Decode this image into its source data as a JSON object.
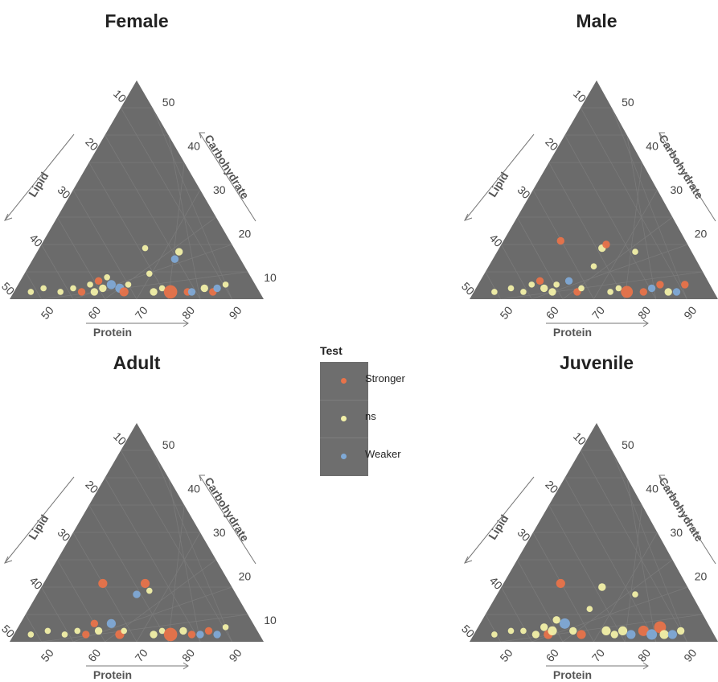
{
  "legend": {
    "title": "Test",
    "items": [
      {
        "label": "Stronger",
        "color": "#e8734a"
      },
      {
        "label": "ns",
        "color": "#f2f0a8"
      },
      {
        "label": "Weaker",
        "color": "#7fa9d6"
      }
    ]
  },
  "axes": {
    "lipid": "Lipid",
    "carbohydrate": "Carbohydrate",
    "protein": "Protein",
    "lipid_ticks": [
      "10",
      "20",
      "30",
      "40",
      "50"
    ],
    "carb_ticks": [
      "10",
      "20",
      "30",
      "40",
      "50"
    ],
    "protein_ticks": [
      "50",
      "60",
      "70",
      "80",
      "90"
    ]
  },
  "chart_data": [
    {
      "type": "scatter",
      "title": "Female",
      "points": [
        {
          "protein": 45,
          "carbohydrate": 2,
          "test": "ns",
          "size": 2
        },
        {
          "protein": 48,
          "carbohydrate": 3,
          "test": "ns",
          "size": 2
        },
        {
          "protein": 52,
          "carbohydrate": 2,
          "test": "ns",
          "size": 2
        },
        {
          "protein": 55,
          "carbohydrate": 3,
          "test": "ns",
          "size": 2
        },
        {
          "protein": 57,
          "carbohydrate": 2,
          "test": "Stronger",
          "size": 3
        },
        {
          "protein": 59,
          "carbohydrate": 4,
          "test": "ns",
          "size": 2
        },
        {
          "protein": 60,
          "carbohydrate": 2,
          "test": "ns",
          "size": 3
        },
        {
          "protein": 61,
          "carbohydrate": 5,
          "test": "Stronger",
          "size": 3
        },
        {
          "protein": 62,
          "carbohydrate": 3,
          "test": "ns",
          "size": 3
        },
        {
          "protein": 63,
          "carbohydrate": 6,
          "test": "ns",
          "size": 2
        },
        {
          "protein": 64,
          "carbohydrate": 4,
          "test": "Weaker",
          "size": 4
        },
        {
          "protein": 66,
          "carbohydrate": 3,
          "test": "Weaker",
          "size": 4
        },
        {
          "protein": 67,
          "carbohydrate": 2,
          "test": "Stronger",
          "size": 4
        },
        {
          "protein": 68,
          "carbohydrate": 4,
          "test": "ns",
          "size": 2
        },
        {
          "protein": 72,
          "carbohydrate": 14,
          "test": "ns",
          "size": 2
        },
        {
          "protein": 73,
          "carbohydrate": 7,
          "test": "ns",
          "size": 2
        },
        {
          "protein": 74,
          "carbohydrate": 2,
          "test": "ns",
          "size": 3
        },
        {
          "protein": 76,
          "carbohydrate": 3,
          "test": "ns",
          "size": 2
        },
        {
          "protein": 78,
          "carbohydrate": 2,
          "test": "Stronger",
          "size": 7
        },
        {
          "protein": 79,
          "carbohydrate": 11,
          "test": "Weaker",
          "size": 3
        },
        {
          "protein": 80,
          "carbohydrate": 13,
          "test": "ns",
          "size": 3
        },
        {
          "protein": 82,
          "carbohydrate": 2,
          "test": "Stronger",
          "size": 3
        },
        {
          "protein": 83,
          "carbohydrate": 2,
          "test": "Weaker",
          "size": 3
        },
        {
          "protein": 86,
          "carbohydrate": 3,
          "test": "ns",
          "size": 3
        },
        {
          "protein": 88,
          "carbohydrate": 2,
          "test": "Stronger",
          "size": 3
        },
        {
          "protein": 89,
          "carbohydrate": 3,
          "test": "Weaker",
          "size": 3
        },
        {
          "protein": 91,
          "carbohydrate": 4,
          "test": "ns",
          "size": 2
        }
      ]
    },
    {
      "type": "scatter",
      "title": "Male",
      "points": [
        {
          "protein": 46,
          "carbohydrate": 2,
          "test": "ns",
          "size": 2
        },
        {
          "protein": 50,
          "carbohydrate": 3,
          "test": "ns",
          "size": 2
        },
        {
          "protein": 53,
          "carbohydrate": 2,
          "test": "ns",
          "size": 2
        },
        {
          "protein": 55,
          "carbohydrate": 4,
          "test": "ns",
          "size": 2
        },
        {
          "protein": 57,
          "carbohydrate": 5,
          "test": "Stronger",
          "size": 3
        },
        {
          "protein": 58,
          "carbohydrate": 3,
          "test": "ns",
          "size": 3
        },
        {
          "protein": 60,
          "carbohydrate": 2,
          "test": "ns",
          "size": 3
        },
        {
          "protein": 61,
          "carbohydrate": 4,
          "test": "ns",
          "size": 2
        },
        {
          "protein": 62,
          "carbohydrate": 16,
          "test": "Stronger",
          "size": 3
        },
        {
          "protein": 64,
          "carbohydrate": 5,
          "test": "Weaker",
          "size": 3
        },
        {
          "protein": 66,
          "carbohydrate": 2,
          "test": "Stronger",
          "size": 3
        },
        {
          "protein": 67,
          "carbohydrate": 3,
          "test": "ns",
          "size": 2
        },
        {
          "protein": 70,
          "carbohydrate": 9,
          "test": "ns",
          "size": 2
        },
        {
          "protein": 72,
          "carbohydrate": 14,
          "test": "ns",
          "size": 3
        },
        {
          "protein": 73,
          "carbohydrate": 15,
          "test": "Stronger",
          "size": 3
        },
        {
          "protein": 74,
          "carbohydrate": 2,
          "test": "ns",
          "size": 2
        },
        {
          "protein": 76,
          "carbohydrate": 3,
          "test": "ns",
          "size": 2
        },
        {
          "protein": 78,
          "carbohydrate": 2,
          "test": "Stronger",
          "size": 6
        },
        {
          "protein": 80,
          "carbohydrate": 13,
          "test": "ns",
          "size": 2
        },
        {
          "protein": 82,
          "carbohydrate": 2,
          "test": "Stronger",
          "size": 3
        },
        {
          "protein": 84,
          "carbohydrate": 3,
          "test": "Weaker",
          "size": 3
        },
        {
          "protein": 86,
          "carbohydrate": 4,
          "test": "Stronger",
          "size": 3
        },
        {
          "protein": 88,
          "carbohydrate": 2,
          "test": "ns",
          "size": 3
        },
        {
          "protein": 90,
          "carbohydrate": 2,
          "test": "Weaker",
          "size": 3
        },
        {
          "protein": 92,
          "carbohydrate": 4,
          "test": "Stronger",
          "size": 3
        }
      ]
    },
    {
      "type": "scatter",
      "title": "Adult",
      "points": [
        {
          "protein": 45,
          "carbohydrate": 2,
          "test": "ns",
          "size": 2
        },
        {
          "protein": 49,
          "carbohydrate": 3,
          "test": "ns",
          "size": 2
        },
        {
          "protein": 53,
          "carbohydrate": 2,
          "test": "ns",
          "size": 2
        },
        {
          "protein": 56,
          "carbohydrate": 3,
          "test": "ns",
          "size": 2
        },
        {
          "protein": 58,
          "carbohydrate": 2,
          "test": "Stronger",
          "size": 3
        },
        {
          "protein": 60,
          "carbohydrate": 5,
          "test": "Stronger",
          "size": 3
        },
        {
          "protein": 61,
          "carbohydrate": 3,
          "test": "ns",
          "size": 3
        },
        {
          "protein": 62,
          "carbohydrate": 16,
          "test": "Stronger",
          "size": 4
        },
        {
          "protein": 64,
          "carbohydrate": 5,
          "test": "Weaker",
          "size": 4
        },
        {
          "protein": 66,
          "carbohydrate": 2,
          "test": "Stronger",
          "size": 4
        },
        {
          "protein": 67,
          "carbohydrate": 3,
          "test": "ns",
          "size": 2
        },
        {
          "protein": 70,
          "carbohydrate": 13,
          "test": "Weaker",
          "size": 3
        },
        {
          "protein": 72,
          "carbohydrate": 16,
          "test": "Stronger",
          "size": 4
        },
        {
          "protein": 73,
          "carbohydrate": 14,
          "test": "ns",
          "size": 2
        },
        {
          "protein": 74,
          "carbohydrate": 2,
          "test": "ns",
          "size": 3
        },
        {
          "protein": 76,
          "carbohydrate": 3,
          "test": "ns",
          "size": 2
        },
        {
          "protein": 78,
          "carbohydrate": 2,
          "test": "Stronger",
          "size": 7
        },
        {
          "protein": 81,
          "carbohydrate": 3,
          "test": "ns",
          "size": 3
        },
        {
          "protein": 83,
          "carbohydrate": 2,
          "test": "Stronger",
          "size": 3
        },
        {
          "protein": 85,
          "carbohydrate": 2,
          "test": "Weaker",
          "size": 3
        },
        {
          "protein": 87,
          "carbohydrate": 3,
          "test": "Stronger",
          "size": 3
        },
        {
          "protein": 89,
          "carbohydrate": 2,
          "test": "Weaker",
          "size": 3
        },
        {
          "protein": 91,
          "carbohydrate": 4,
          "test": "ns",
          "size": 2
        }
      ]
    },
    {
      "type": "scatter",
      "title": "Juvenile",
      "points": [
        {
          "protein": 46,
          "carbohydrate": 2,
          "test": "ns",
          "size": 2
        },
        {
          "protein": 50,
          "carbohydrate": 3,
          "test": "ns",
          "size": 2
        },
        {
          "protein": 53,
          "carbohydrate": 3,
          "test": "ns",
          "size": 2
        },
        {
          "protein": 56,
          "carbohydrate": 2,
          "test": "ns",
          "size": 3
        },
        {
          "protein": 58,
          "carbohydrate": 4,
          "test": "ns",
          "size": 3
        },
        {
          "protein": 59,
          "carbohydrate": 2,
          "test": "Stronger",
          "size": 4
        },
        {
          "protein": 60,
          "carbohydrate": 3,
          "test": "ns",
          "size": 4
        },
        {
          "protein": 61,
          "carbohydrate": 6,
          "test": "ns",
          "size": 3
        },
        {
          "protein": 62,
          "carbohydrate": 16,
          "test": "Stronger",
          "size": 4
        },
        {
          "protein": 63,
          "carbohydrate": 5,
          "test": "Weaker",
          "size": 5
        },
        {
          "protein": 65,
          "carbohydrate": 3,
          "test": "ns",
          "size": 3
        },
        {
          "protein": 67,
          "carbohydrate": 2,
          "test": "Stronger",
          "size": 4
        },
        {
          "protein": 69,
          "carbohydrate": 9,
          "test": "ns",
          "size": 2
        },
        {
          "protein": 72,
          "carbohydrate": 15,
          "test": "ns",
          "size": 3
        },
        {
          "protein": 73,
          "carbohydrate": 3,
          "test": "ns",
          "size": 4
        },
        {
          "protein": 75,
          "carbohydrate": 2,
          "test": "ns",
          "size": 3
        },
        {
          "protein": 77,
          "carbohydrate": 3,
          "test": "ns",
          "size": 4
        },
        {
          "protein": 79,
          "carbohydrate": 2,
          "test": "Weaker",
          "size": 4
        },
        {
          "protein": 80,
          "carbohydrate": 13,
          "test": "ns",
          "size": 2
        },
        {
          "protein": 82,
          "carbohydrate": 3,
          "test": "Stronger",
          "size": 5
        },
        {
          "protein": 84,
          "carbohydrate": 2,
          "test": "Weaker",
          "size": 5
        },
        {
          "protein": 86,
          "carbohydrate": 4,
          "test": "Stronger",
          "size": 6
        },
        {
          "protein": 87,
          "carbohydrate": 2,
          "test": "ns",
          "size": 4
        },
        {
          "protein": 89,
          "carbohydrate": 2,
          "test": "Weaker",
          "size": 4
        },
        {
          "protein": 91,
          "carbohydrate": 3,
          "test": "ns",
          "size": 3
        }
      ]
    }
  ]
}
